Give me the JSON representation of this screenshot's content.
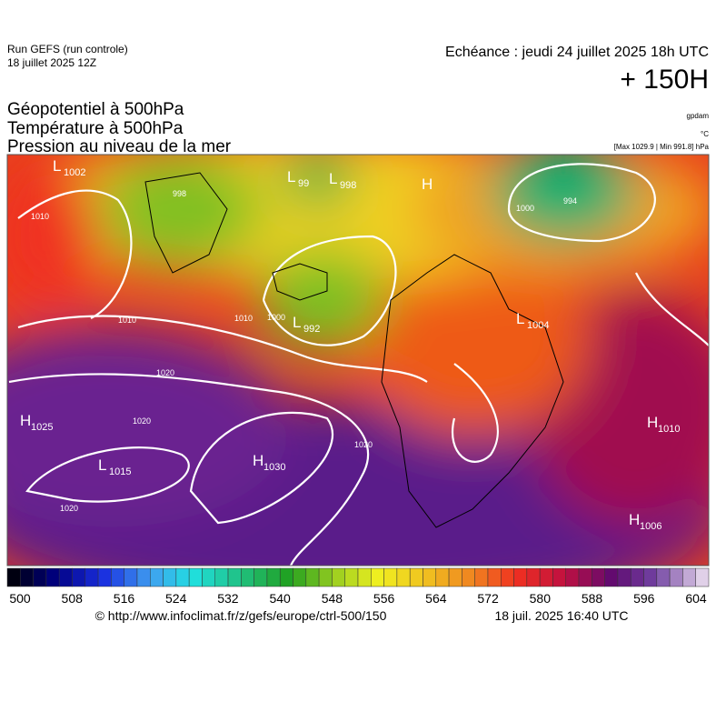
{
  "header": {
    "run": "Run GEFS (run controle)",
    "run_date": "18 juillet 2025 12Z",
    "valid": "Echéance : jeudi 24 juillet 2025 18h UTC",
    "lead": "+ 150H"
  },
  "titles": [
    "Géopotentiel à 500hPa",
    "Température à 500hPa",
    "Pression au niveau de la mer"
  ],
  "units": {
    "geopotential": "gpdam",
    "temperature": "°C",
    "pressure": "[Max 1029.9 | Min 991.8] hPa"
  },
  "centers": [
    {
      "letter": "L",
      "value": "1002"
    },
    {
      "letter": "L",
      "value": "99"
    },
    {
      "letter": "L",
      "value": "998"
    },
    {
      "letter": "H"
    },
    {
      "letter": "L",
      "value": "992"
    },
    {
      "letter": "L",
      "value": "1004"
    },
    {
      "letter": "H",
      "value": "1025"
    },
    {
      "letter": "L",
      "value": "1015"
    },
    {
      "letter": "H",
      "value": "1030"
    },
    {
      "letter": "H",
      "value": "1010"
    },
    {
      "letter": "H",
      "value": "1006"
    }
  ],
  "isobar_labels": [
    "1010",
    "1010",
    "1010",
    "1020",
    "1020",
    "1020",
    "1020",
    "1000",
    "1000",
    "998",
    "994"
  ],
  "colorbar": {
    "ticks": [
      500,
      508,
      516,
      524,
      532,
      540,
      548,
      556,
      564,
      572,
      580,
      588,
      596,
      604
    ]
  },
  "footer": {
    "source": "© http://www.infoclimat.fr/z/gefs/europe/ctrl-500/150",
    "issued": "18 juil. 2025 16:40 UTC"
  }
}
